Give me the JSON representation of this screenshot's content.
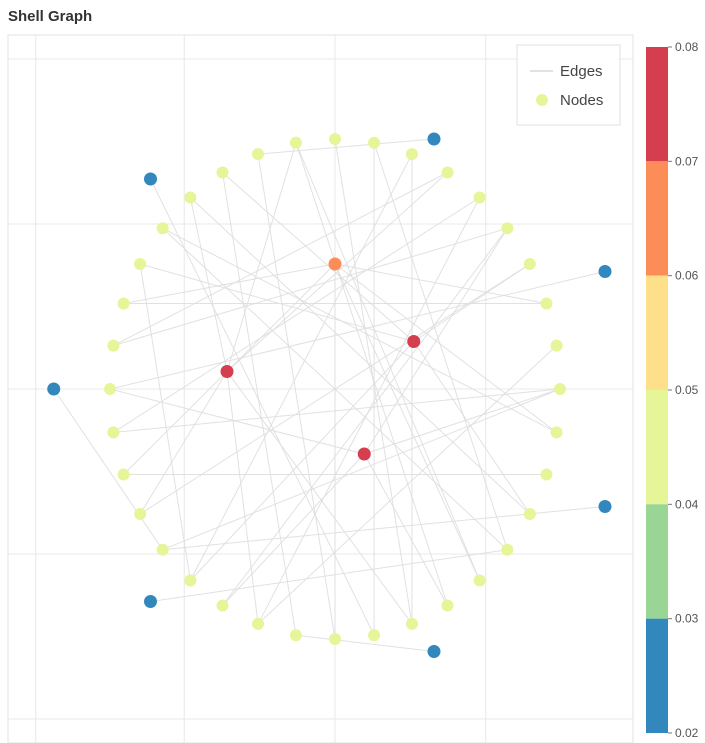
{
  "chart_data": {
    "type": "scatter",
    "title": "Shell Graph",
    "legend": {
      "placement": "top-right",
      "entries": [
        "Edges",
        "Nodes"
      ]
    },
    "colorbar": {
      "min": 0.02,
      "max": 0.08,
      "ticks": [
        "0.08",
        "0.07",
        "0.06",
        "0.05",
        "0.04",
        "0.03",
        "0.02"
      ],
      "bands": [
        {
          "from": 0.07,
          "to": 0.08,
          "color": "#d53e4f"
        },
        {
          "from": 0.06,
          "to": 0.07,
          "color": "#fc8d59"
        },
        {
          "from": 0.05,
          "to": 0.06,
          "color": "#fee08b"
        },
        {
          "from": 0.04,
          "to": 0.05,
          "color": "#e6f598"
        },
        {
          "from": 0.03,
          "to": 0.04,
          "color": "#99d594"
        },
        {
          "from": 0.02,
          "to": 0.03,
          "color": "#3288bd"
        }
      ]
    },
    "axes": {
      "x_range": [
        -1.2,
        1.1
      ],
      "y_range": [
        -1.12,
        1.12
      ],
      "grid": true,
      "tick_labels_visible": false
    },
    "shells": [
      {
        "name": "inner",
        "radius": 0.5,
        "nodes": [
          {
            "x": 0.0,
            "y": 0.5,
            "value": 0.065
          },
          {
            "x": 0.35,
            "y": 0.19,
            "value": 0.075
          },
          {
            "x": 0.13,
            "y": -0.26,
            "value": 0.075
          },
          {
            "x": -0.48,
            "y": 0.07,
            "value": 0.075
          }
        ]
      },
      {
        "name": "middle",
        "radius": 1.0,
        "count": 36,
        "start_angle_deg": 90,
        "value": 0.045
      },
      {
        "name": "outer",
        "nodes": [
          {
            "x": 0.44,
            "y": 1.0,
            "value": 0.025
          },
          {
            "x": -1.25,
            "y": 0.0,
            "value": 0.025
          },
          {
            "x": -0.82,
            "y": 0.84,
            "value": 0.025
          },
          {
            "x": -0.82,
            "y": -0.85,
            "value": 0.025
          },
          {
            "x": 0.44,
            "y": -1.05,
            "value": 0.025
          },
          {
            "x": 1.2,
            "y": 0.47,
            "value": 0.025
          },
          {
            "x": 1.2,
            "y": -0.47,
            "value": 0.025
          }
        ]
      }
    ],
    "edges": [
      [
        "o0",
        "m2"
      ],
      [
        "o2",
        "m19"
      ],
      [
        "o5",
        "m9"
      ],
      [
        "o6",
        "m13"
      ],
      [
        "o1",
        "m13"
      ],
      [
        "o3",
        "m23"
      ],
      [
        "o4",
        "m17"
      ],
      [
        "i0",
        "m7"
      ],
      [
        "i0",
        "m11"
      ],
      [
        "i0",
        "m18"
      ],
      [
        "i0",
        "m22"
      ],
      [
        "i0",
        "m26"
      ],
      [
        "i0",
        "m29"
      ],
      [
        "i1",
        "m3"
      ],
      [
        "i1",
        "m14"
      ],
      [
        "i1",
        "m24"
      ],
      [
        "i1",
        "m6"
      ],
      [
        "i1",
        "m30"
      ],
      [
        "i2",
        "m21"
      ],
      [
        "i2",
        "m31"
      ],
      [
        "i2",
        "m9"
      ],
      [
        "i2",
        "m15"
      ],
      [
        "i2",
        "m27"
      ],
      [
        "i3",
        "m1"
      ],
      [
        "i3",
        "m33"
      ],
      [
        "i3",
        "m20"
      ],
      [
        "i3",
        "m12"
      ],
      [
        "i3",
        "m16"
      ],
      [
        "i3",
        "m4"
      ],
      [
        "m0",
        "m20"
      ],
      [
        "m1",
        "m22"
      ],
      [
        "m2",
        "m18"
      ],
      [
        "m3",
        "m17"
      ],
      [
        "m4",
        "m24"
      ],
      [
        "m5",
        "m26"
      ],
      [
        "m6",
        "m14"
      ],
      [
        "m7",
        "m29"
      ],
      [
        "m8",
        "m33"
      ],
      [
        "m10",
        "m27"
      ],
      [
        "m12",
        "m30"
      ],
      [
        "m14",
        "m34"
      ],
      [
        "m16",
        "m32"
      ],
      [
        "m19",
        "m35"
      ],
      [
        "m21",
        "m1"
      ],
      [
        "m23",
        "m5"
      ],
      [
        "m25",
        "m11"
      ],
      [
        "m28",
        "m16"
      ],
      [
        "m31",
        "m8"
      ],
      [
        "m35",
        "m23"
      ],
      [
        "m13",
        "m27"
      ],
      [
        "m15",
        "m31"
      ],
      [
        "m34",
        "m20"
      ],
      [
        "m32",
        "m10"
      ]
    ]
  }
}
